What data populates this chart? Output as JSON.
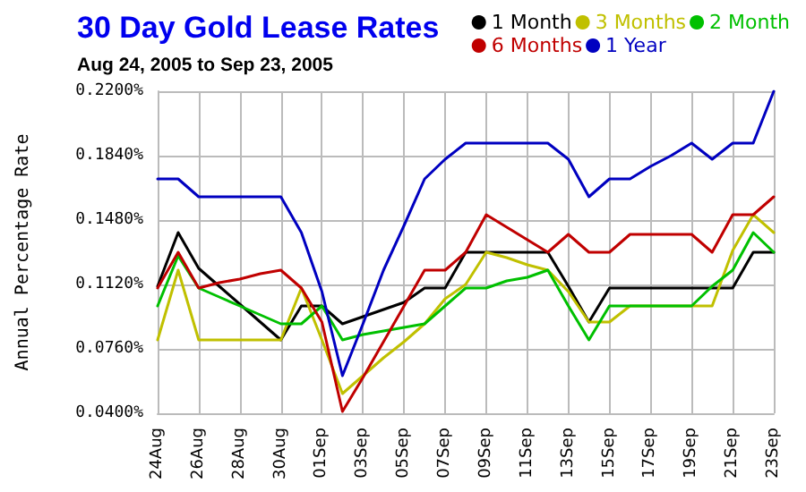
{
  "chart_data": {
    "type": "line",
    "title": "30 Day Gold Lease Rates",
    "subtitle": "Aug 24, 2005 to Sep 23, 2005",
    "ylabel": "Annual Percentage Rate",
    "categories": [
      "24Aug",
      null,
      "26Aug",
      null,
      "28Aug",
      null,
      "30Aug",
      null,
      "01Sep",
      null,
      "03Sep",
      null,
      "05Sep",
      null,
      "07Sep",
      null,
      "09Sep",
      null,
      "11Sep",
      null,
      "13Sep",
      null,
      "15Sep",
      null,
      "17Sep",
      null,
      "19Sep",
      null,
      "21Sep",
      null,
      "23Sep"
    ],
    "series": [
      {
        "name": "1 Month",
        "color": "#000000",
        "values": [
          0.111,
          0.141,
          0.121,
          0.111,
          0.101,
          0.091,
          0.081,
          0.1,
          0.1,
          0.09,
          0.094,
          0.098,
          0.102,
          0.11,
          0.11,
          0.13,
          0.13,
          0.13,
          0.13,
          0.13,
          0.111,
          0.091,
          0.11,
          0.11,
          0.11,
          0.11,
          0.11,
          0.11,
          0.11,
          0.13,
          0.13
        ]
      },
      {
        "name": "3 Months",
        "color": "#c0c000",
        "values": [
          0.081,
          0.12,
          0.081,
          0.081,
          0.081,
          0.081,
          0.081,
          0.11,
          0.081,
          0.051,
          0.061,
          0.071,
          0.08,
          0.09,
          0.104,
          0.112,
          0.13,
          0.127,
          0.123,
          0.12,
          0.108,
          0.091,
          0.091,
          0.1,
          0.1,
          0.1,
          0.1,
          0.1,
          0.131,
          0.151,
          0.141
        ]
      },
      {
        "name": "2 Month",
        "color": "#00c000",
        "values": [
          0.1,
          0.128,
          0.11,
          0.105,
          0.1,
          0.095,
          0.09,
          0.09,
          0.1,
          0.081,
          0.084,
          0.086,
          0.088,
          0.09,
          0.1,
          0.11,
          0.11,
          0.114,
          0.116,
          0.12,
          0.1,
          0.081,
          0.1,
          0.1,
          0.1,
          0.1,
          0.1,
          0.111,
          0.12,
          0.141,
          0.13
        ]
      },
      {
        "name": "6 Months",
        "color": "#c00000",
        "values": [
          0.11,
          0.13,
          0.11,
          0.113,
          0.115,
          0.118,
          0.12,
          0.11,
          0.091,
          0.041,
          0.06,
          0.08,
          0.1,
          0.12,
          0.12,
          0.13,
          0.151,
          0.144,
          0.137,
          0.13,
          0.14,
          0.13,
          0.13,
          0.14,
          0.14,
          0.14,
          0.14,
          0.13,
          0.151,
          0.151,
          0.161
        ]
      },
      {
        "name": "1 Year",
        "color": "#0000c0",
        "values": [
          0.171,
          0.171,
          0.161,
          0.161,
          0.161,
          0.161,
          0.161,
          0.141,
          0.108,
          0.061,
          0.09,
          0.12,
          0.145,
          0.171,
          0.182,
          0.191,
          0.191,
          0.191,
          0.191,
          0.191,
          0.182,
          0.161,
          0.171,
          0.171,
          0.178,
          0.184,
          0.191,
          0.182,
          0.191,
          0.191,
          0.22
        ]
      }
    ],
    "ylim": [
      0.04,
      0.22
    ],
    "yticks": [
      {
        "value": 0.04,
        "label": "0.0400%"
      },
      {
        "value": 0.076,
        "label": "0.0760%"
      },
      {
        "value": 0.112,
        "label": "0.1120%"
      },
      {
        "value": 0.148,
        "label": "0.1480%"
      },
      {
        "value": 0.184,
        "label": "0.1840%"
      },
      {
        "value": 0.22,
        "label": "0.2200%"
      }
    ],
    "grid": true,
    "legend": "top right",
    "marker": "none",
    "line_style": "solid"
  }
}
